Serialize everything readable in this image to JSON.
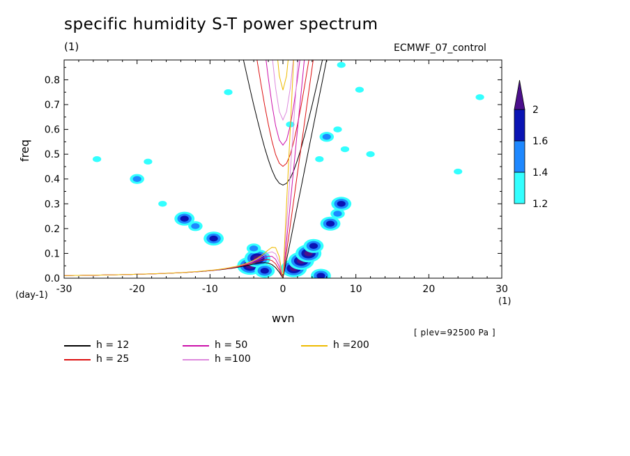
{
  "chart_data": {
    "type": "heatmap",
    "title": "specific humidity S-T power spectrum",
    "subtitle": "(1)",
    "model_label": "ECMWF_07_control",
    "xlabel": "wvn",
    "ylabel": "freq",
    "x_unit": "(1)",
    "y_unit": "(day-1)",
    "annotation": "[ plev=92500 Pa ]",
    "xlim": [
      -30,
      30
    ],
    "ylim": [
      0,
      0.88
    ],
    "xticks": [
      -30,
      -20,
      -10,
      0,
      10,
      20,
      30
    ],
    "yticks": [
      0.0,
      0.1,
      0.2,
      0.3,
      0.4,
      0.5,
      0.6,
      0.7,
      0.8
    ],
    "xtick_labels": [
      "-30",
      "-20",
      "-10",
      "0",
      "10",
      "20",
      "30"
    ],
    "ytick_labels": [
      "0.0",
      "0.1",
      "0.2",
      "0.3",
      "0.4",
      "0.5",
      "0.6",
      "0.7",
      "0.8"
    ],
    "colorbar": {
      "levels": [
        1.2,
        1.4,
        1.6,
        2
      ],
      "labels": [
        "1.2",
        "1.4",
        "1.6",
        "2"
      ],
      "colors": [
        "#33ffff",
        "#1e88ff",
        "#0a14b4",
        "#4b0f8c"
      ]
    },
    "dispersion_curves": [
      {
        "name": "h = 12",
        "h": 12,
        "color": "#000000"
      },
      {
        "name": "h = 25",
        "h": 25,
        "color": "#dd1010"
      },
      {
        "name": "h = 50",
        "h": 50,
        "color": "#cc10aa"
      },
      {
        "name": "h =100",
        "h": 100,
        "color": "#dd88dd"
      },
      {
        "name": "h =200",
        "h": 200,
        "color": "#eebb00"
      }
    ],
    "contour_blobs": [
      {
        "x": 1.5,
        "y": 0.04,
        "level": 4
      },
      {
        "x": 2.5,
        "y": 0.07,
        "level": 4
      },
      {
        "x": 3.5,
        "y": 0.1,
        "level": 4
      },
      {
        "x": 4.2,
        "y": 0.13,
        "level": 3
      },
      {
        "x": 6.5,
        "y": 0.22,
        "level": 3
      },
      {
        "x": 8,
        "y": 0.3,
        "level": 3
      },
      {
        "x": 7.5,
        "y": 0.26,
        "level": 2
      },
      {
        "x": 5.2,
        "y": 0.01,
        "level": 3
      },
      {
        "x": -4.5,
        "y": 0.05,
        "level": 4
      },
      {
        "x": -3.5,
        "y": 0.08,
        "level": 4
      },
      {
        "x": -2.5,
        "y": 0.03,
        "level": 3
      },
      {
        "x": -4,
        "y": 0.12,
        "level": 2
      },
      {
        "x": -9.5,
        "y": 0.16,
        "level": 3
      },
      {
        "x": -13.5,
        "y": 0.24,
        "level": 3
      },
      {
        "x": -12,
        "y": 0.21,
        "level": 2
      },
      {
        "x": 6,
        "y": 0.57,
        "level": 2
      },
      {
        "x": 7.5,
        "y": 0.6,
        "level": 1
      },
      {
        "x": 8.5,
        "y": 0.52,
        "level": 1
      },
      {
        "x": 10.5,
        "y": 0.76,
        "level": 1
      },
      {
        "x": 8,
        "y": 0.86,
        "level": 1
      },
      {
        "x": -7.5,
        "y": 0.75,
        "level": 1
      },
      {
        "x": -20,
        "y": 0.4,
        "level": 2
      },
      {
        "x": -18.5,
        "y": 0.47,
        "level": 1
      },
      {
        "x": -16.5,
        "y": 0.3,
        "level": 1
      },
      {
        "x": 1,
        "y": 0.62,
        "level": 1
      },
      {
        "x": 12,
        "y": 0.5,
        "level": 1
      },
      {
        "x": 5,
        "y": 0.48,
        "level": 1
      },
      {
        "x": 24,
        "y": 0.43,
        "level": 1
      },
      {
        "x": 27,
        "y": 0.73,
        "level": 1
      },
      {
        "x": -25.5,
        "y": 0.48,
        "level": 1
      }
    ]
  }
}
